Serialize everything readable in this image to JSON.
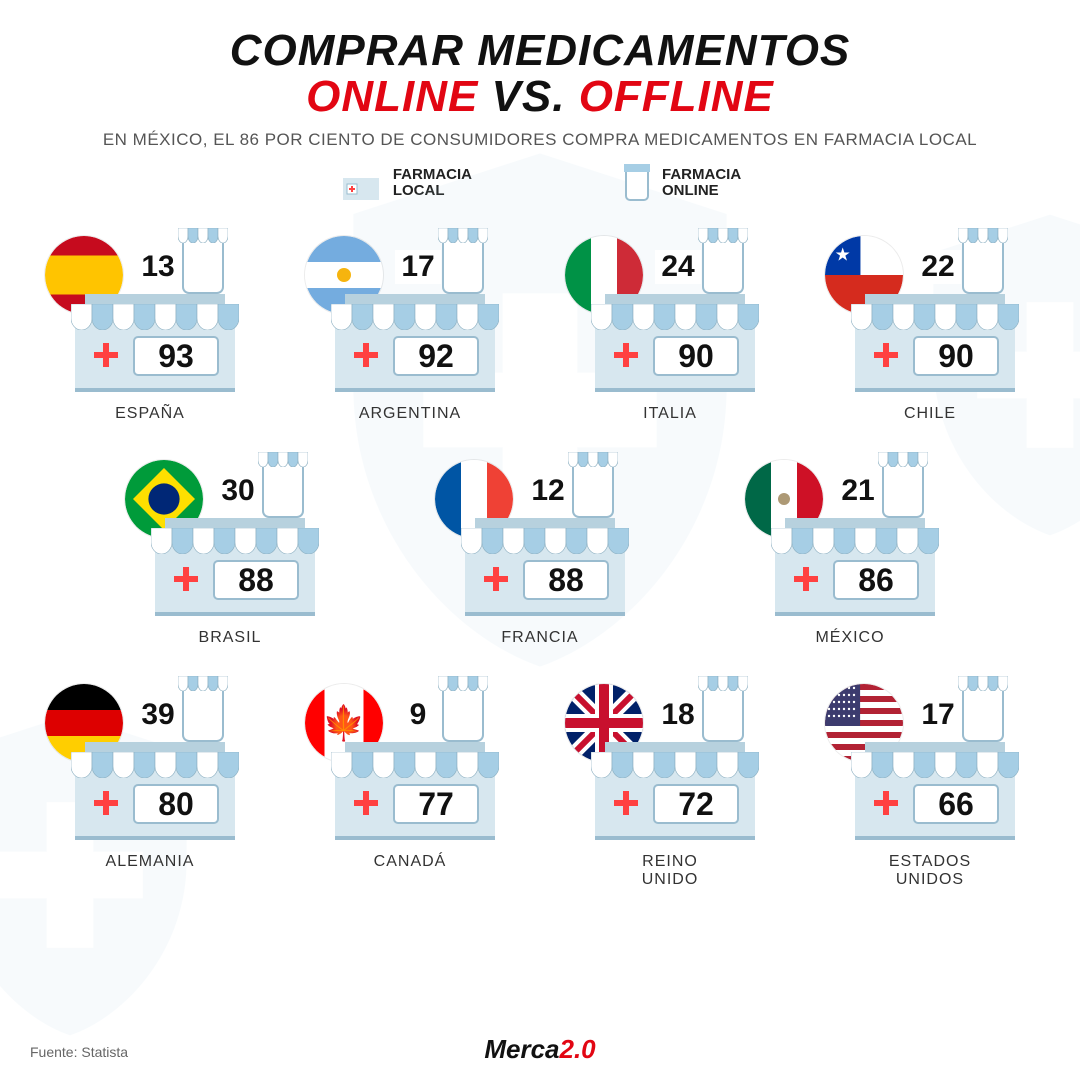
{
  "title_line1": "COMPRAR MEDICAMENTOS",
  "title_online": "ONLINE",
  "title_vs": " VS. ",
  "title_offline": "OFFLINE",
  "subtitle": "EN MÉXICO, EL 86 POR CIENTO DE CONSUMIDORES COMPRA MEDICAMENTOS EN FARMACIA LOCAL",
  "legend": {
    "local": "FARMACIA\nLOCAL",
    "online": "FARMACIA\nONLINE"
  },
  "colors": {
    "accent": "#e20613",
    "awning_light": "#ffffff",
    "awning_dark": "#a6cee5",
    "store_fill": "#d7e7ef",
    "outline": "#9abccf",
    "cross": "#ff4141",
    "text": "#111111",
    "bg": "#ffffff"
  },
  "flags": {
    "spain": {
      "type": "hstripes",
      "stripes": [
        "#c60b1e",
        "#ffc400",
        "#ffc400",
        "#c60b1e"
      ]
    },
    "argentina": {
      "type": "hstripes",
      "stripes": [
        "#74acdf",
        "#ffffff",
        "#74acdf"
      ],
      "sun": "#f6b40e"
    },
    "italy": {
      "type": "vstripes",
      "stripes": [
        "#009246",
        "#ffffff",
        "#ce2b37"
      ]
    },
    "chile": {
      "type": "chile",
      "blue": "#0039a6",
      "white": "#ffffff",
      "red": "#d52b1e"
    },
    "brazil": {
      "type": "brazil",
      "green": "#009b3a",
      "yellow": "#fedf00",
      "blue": "#002776"
    },
    "france": {
      "type": "vstripes",
      "stripes": [
        "#0055a4",
        "#ffffff",
        "#ef4135"
      ]
    },
    "mexico": {
      "type": "vstripes",
      "stripes": [
        "#006847",
        "#ffffff",
        "#ce1126"
      ],
      "emblem": "#8a6d3b"
    },
    "germany": {
      "type": "hstripes",
      "stripes": [
        "#000000",
        "#dd0000",
        "#ffce00"
      ]
    },
    "canada": {
      "type": "canada",
      "red": "#ff0000",
      "white": "#ffffff"
    },
    "uk": {
      "type": "uk",
      "blue": "#012169",
      "white": "#ffffff",
      "red": "#c8102e"
    },
    "usa": {
      "type": "usa",
      "blue": "#3c3b6e",
      "white": "#ffffff",
      "red": "#b22234"
    }
  },
  "rows": [
    [
      {
        "flag": "spain",
        "name": "ESPAÑA",
        "online": 13,
        "offline": 93
      },
      {
        "flag": "argentina",
        "name": "ARGENTINA",
        "online": 17,
        "offline": 92
      },
      {
        "flag": "italy",
        "name": "ITALIA",
        "online": 24,
        "offline": 90
      },
      {
        "flag": "chile",
        "name": "CHILE",
        "online": 22,
        "offline": 90
      }
    ],
    [
      {
        "flag": "brazil",
        "name": "BRASIL",
        "online": 30,
        "offline": 88
      },
      {
        "flag": "france",
        "name": "FRANCIA",
        "online": 12,
        "offline": 88
      },
      {
        "flag": "mexico",
        "name": "MÉXICO",
        "online": 21,
        "offline": 86
      }
    ],
    [
      {
        "flag": "germany",
        "name": "ALEMANIA",
        "online": 39,
        "offline": 80
      },
      {
        "flag": "canada",
        "name": "CANADÁ",
        "online": 9,
        "offline": 77
      },
      {
        "flag": "uk",
        "name": "REINO\nUNIDO",
        "online": 18,
        "offline": 72
      },
      {
        "flag": "usa",
        "name": "ESTADOS\nUNIDOS",
        "online": 17,
        "offline": 66
      }
    ]
  ],
  "footer": "Fuente: Statista",
  "brand": {
    "pre": "Merca",
    "suf": "2.0"
  }
}
